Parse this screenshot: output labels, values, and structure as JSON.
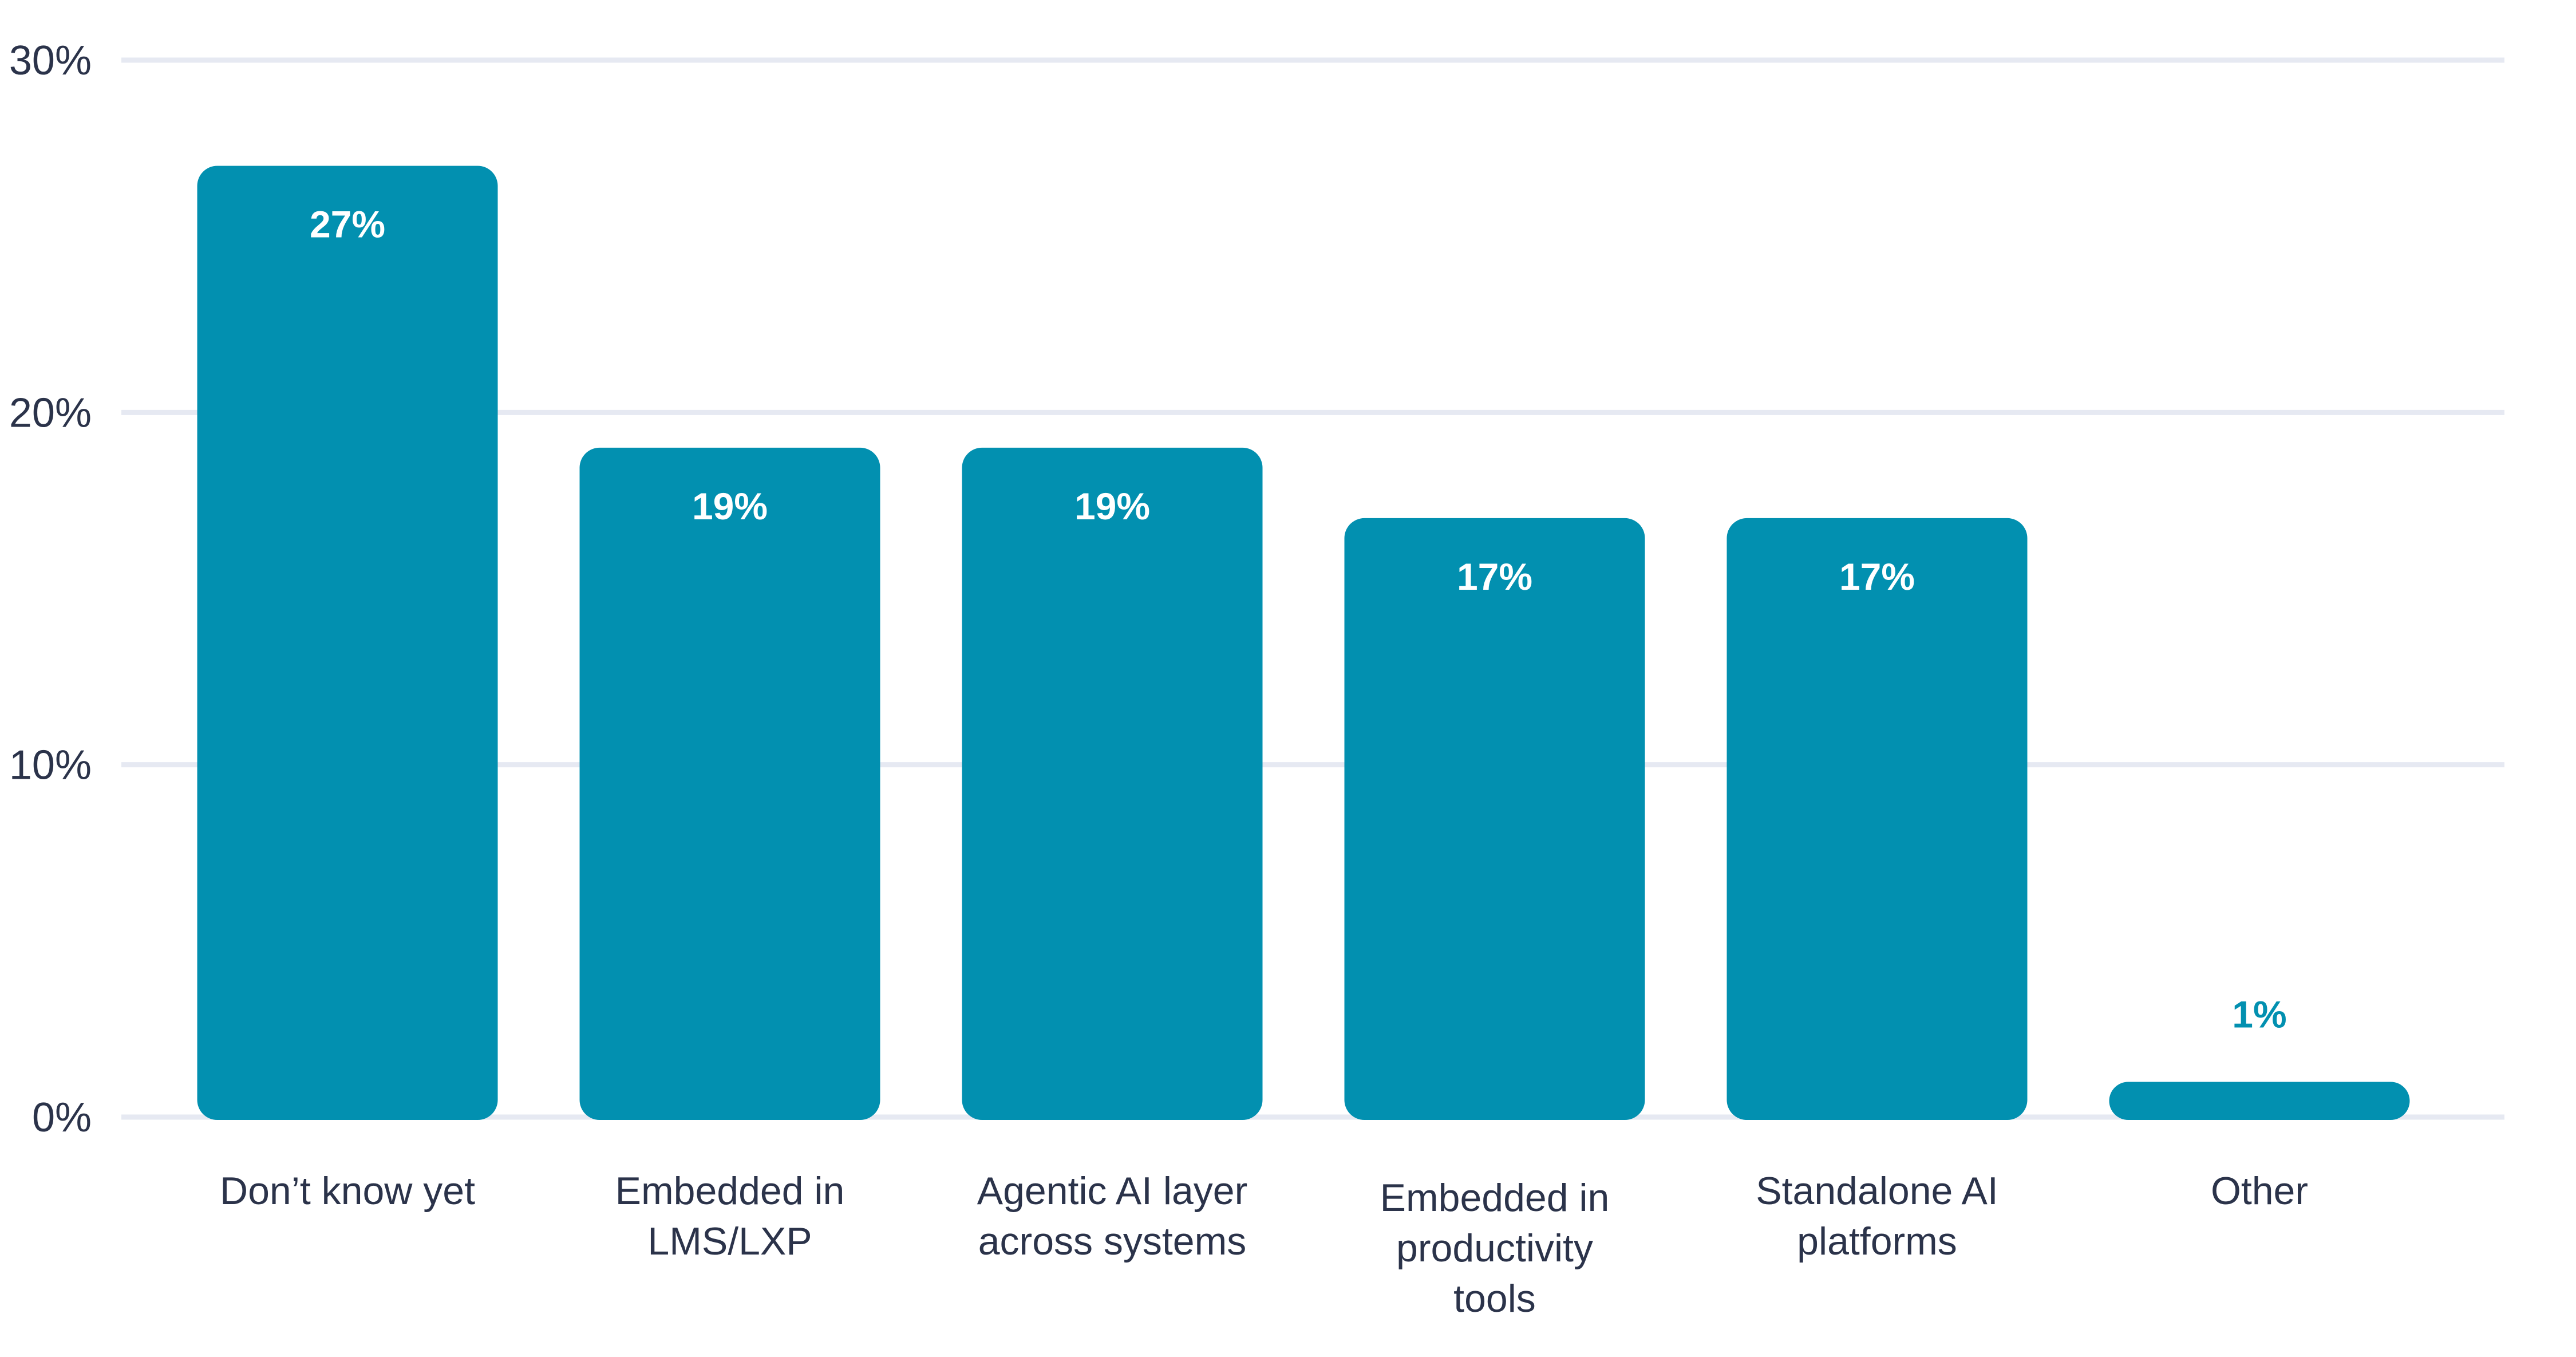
{
  "chart_data": {
    "type": "bar",
    "title": "",
    "xlabel": "",
    "ylabel": "",
    "ylim": [
      0,
      30
    ],
    "yticks": [
      0,
      10,
      20,
      30
    ],
    "ytick_labels": [
      "0%",
      "10%",
      "20%",
      "30%"
    ],
    "grid": true,
    "categories": [
      [
        "Don’t know yet"
      ],
      [
        "Embedded in",
        "LMS/LXP"
      ],
      [
        "Agentic AI layer",
        "across systems"
      ],
      [
        "Embedded in",
        "productivity",
        "tools"
      ],
      [
        "Standalone AI",
        "platforms"
      ],
      [
        "Other"
      ]
    ],
    "values": [
      27,
      19,
      19,
      17,
      17,
      1
    ],
    "data_labels": [
      "27%",
      "19%",
      "19%",
      "17%",
      "17%",
      "1%"
    ],
    "colors": {
      "bar": "#0290b0",
      "grid": "#e6e9f2",
      "text": "#2b334a",
      "label_inside": "#ffffff"
    }
  }
}
